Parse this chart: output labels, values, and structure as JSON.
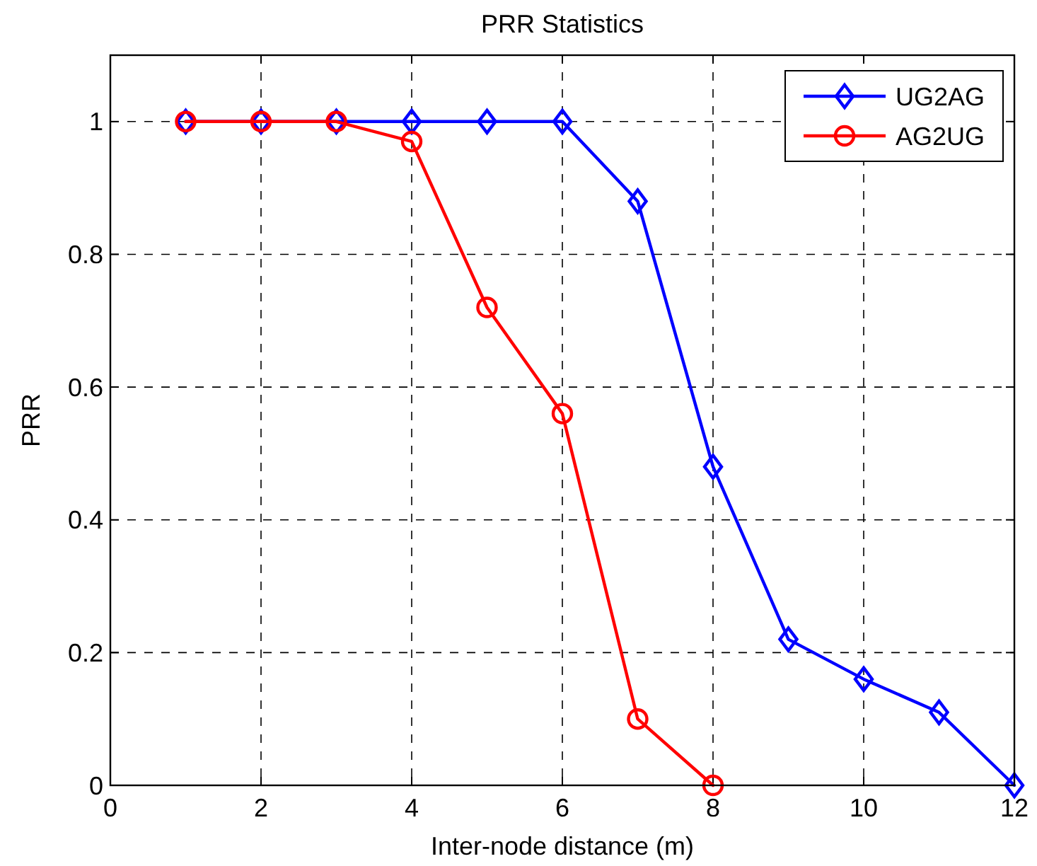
{
  "chart_data": {
    "type": "line",
    "title": "PRR Statistics",
    "xlabel": "Inter-node distance (m)",
    "ylabel": "PRR",
    "xlim": [
      0,
      12
    ],
    "xticks": [
      0,
      2,
      4,
      6,
      8,
      10,
      12
    ],
    "ylim": [
      0,
      1.1
    ],
    "yticks": [
      0,
      0.2,
      0.4,
      0.6,
      0.8,
      1
    ],
    "grid": true,
    "legend": "top right",
    "line_style": "solid",
    "series": [
      {
        "name": "UG2AG",
        "color": "#0000ff",
        "marker": "diamond",
        "x": [
          1,
          2,
          3,
          4,
          5,
          6,
          7,
          8,
          9,
          10,
          11,
          12
        ],
        "values": [
          1,
          1,
          1,
          1,
          1,
          1,
          0.88,
          0.48,
          0.22,
          0.16,
          0.11,
          0
        ]
      },
      {
        "name": "AG2UG",
        "color": "#ff0000",
        "marker": "circle",
        "x": [
          1,
          2,
          3,
          4,
          5,
          6,
          7,
          8
        ],
        "values": [
          1,
          1,
          1,
          0.97,
          0.72,
          0.56,
          0.1,
          0
        ]
      }
    ]
  }
}
